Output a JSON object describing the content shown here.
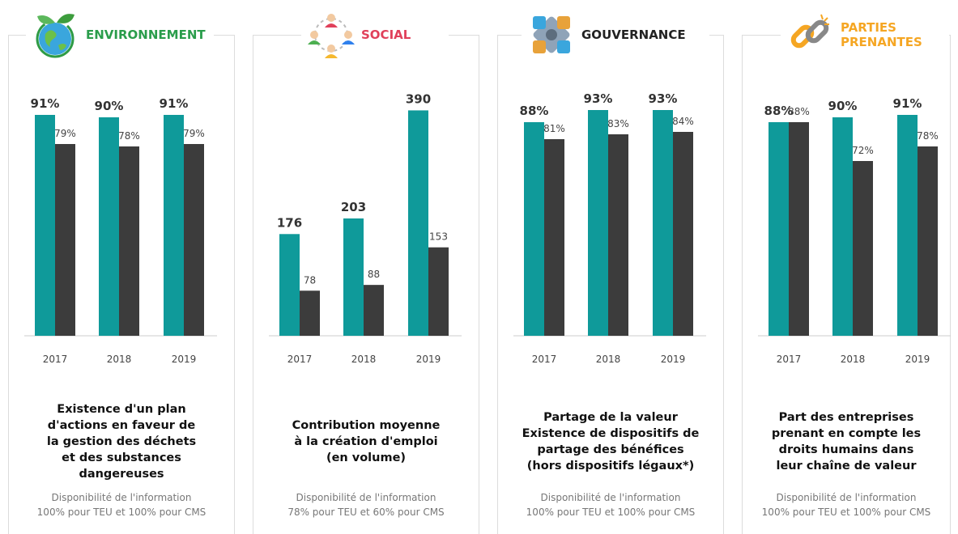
{
  "colors": {
    "teal": "#0f9a9a",
    "dark": "#3c3c3c",
    "axis": "#cccccc",
    "availability_text": "#777777"
  },
  "panels": [
    {
      "title": "ENVIRONNEMENT",
      "title_color": "#2a9d4b",
      "icon": "earth-leaves-icon",
      "description": "Existence d'un plan\nd'actions en faveur de\nla gestion des déchets\net des substances\ndangereuses",
      "availability_title": "Disponibilité de l'information",
      "availability_detail": "100% pour TEU et 100% pour CMS"
    },
    {
      "title": "SOCIAL",
      "title_color": "#e0405a",
      "icon": "people-network-icon",
      "description": "Contribution moyenne\nà la création d'emploi\n(en volume)",
      "availability_title": "Disponibilité de l'information",
      "availability_detail": "78% pour TEU et 60% pour CMS"
    },
    {
      "title": "GOUVERNANCE",
      "title_color": "#222222",
      "icon": "puzzle-pieces-icon",
      "description": "Partage de la valeur\nExistence de dispositifs de\npartage des bénéfices\n(hors dispositifs légaux*)",
      "availability_title": "Disponibilité de l'information",
      "availability_detail": "100% pour TEU et 100% pour CMS"
    },
    {
      "title": "PARTIES PRENANTES",
      "title_color": "#f5a623",
      "icon": "chain-link-icon",
      "description": "Part des entreprises\nprenant en compte les\ndroits humains dans\nleur chaîne de valeur",
      "availability_title": "Disponibilité de l'information",
      "availability_detail": "100% pour TEU et 100% pour CMS"
    }
  ],
  "chart_data": [
    {
      "type": "bar",
      "categories": [
        "2017",
        "2018",
        "2019"
      ],
      "ylim": [
        0,
        100
      ],
      "series": [
        {
          "values": [
            91,
            90,
            91
          ],
          "labels": [
            "91%",
            "90%",
            "91%"
          ]
        },
        {
          "values": [
            79,
            78,
            79
          ],
          "labels": [
            "79%",
            "78%",
            "79%"
          ]
        }
      ]
    },
    {
      "type": "bar",
      "categories": [
        "2017",
        "2018",
        "2019"
      ],
      "ylim": [
        0,
        420
      ],
      "series": [
        {
          "values": [
            176,
            203,
            390
          ],
          "labels": [
            "176",
            "203",
            "390"
          ]
        },
        {
          "values": [
            78,
            88,
            153
          ],
          "labels": [
            "78",
            "88",
            "153"
          ]
        }
      ]
    },
    {
      "type": "bar",
      "categories": [
        "2017",
        "2018",
        "2019"
      ],
      "ylim": [
        0,
        100
      ],
      "series": [
        {
          "values": [
            88,
            93,
            93
          ],
          "labels": [
            "88%",
            "93%",
            "93%"
          ]
        },
        {
          "values": [
            81,
            83,
            84
          ],
          "labels": [
            "81%",
            "83%",
            "84%"
          ]
        }
      ]
    },
    {
      "type": "bar",
      "categories": [
        "2017",
        "2018",
        "2019"
      ],
      "ylim": [
        0,
        100
      ],
      "series": [
        {
          "values": [
            88,
            90,
            91
          ],
          "labels": [
            "88%",
            "90%",
            "91%"
          ]
        },
        {
          "values": [
            88,
            72,
            78
          ],
          "labels": [
            "88%",
            "72%",
            "78%"
          ]
        }
      ]
    }
  ]
}
